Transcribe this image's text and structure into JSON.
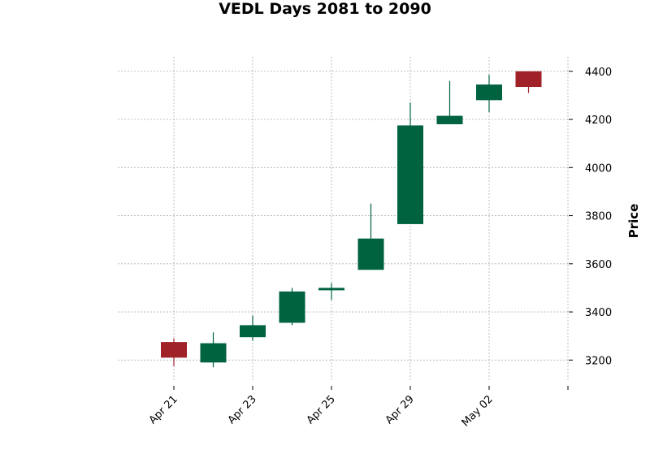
{
  "chart_data": {
    "type": "candlestick",
    "title": "VEDL Days 2081 to 2090",
    "ylabel": "Price",
    "xlabel": "",
    "ylim": [
      3110,
      4460
    ],
    "yticks": [
      3200,
      3400,
      3600,
      3800,
      4000,
      4200,
      4400
    ],
    "grid": true,
    "y_axis_side": "right",
    "colors": {
      "up": "#006340",
      "down": "#a02128"
    },
    "x_tick_labels": [
      "Apr 21",
      "Apr 23",
      "Apr 25",
      "Apr 29",
      "May 02",
      ""
    ],
    "x_tick_positions": [
      0,
      2,
      4,
      6,
      8,
      10
    ],
    "x_range": [
      -1.5,
      10.0
    ],
    "candles": [
      {
        "date": "Apr 21",
        "open": 3275,
        "high": 3290,
        "low": 3175,
        "close": 3210
      },
      {
        "date": "Apr 22",
        "open": 3190,
        "high": 3315,
        "low": 3170,
        "close": 3270
      },
      {
        "date": "Apr 23",
        "open": 3295,
        "high": 3385,
        "low": 3280,
        "close": 3345
      },
      {
        "date": "Apr 24",
        "open": 3355,
        "high": 3500,
        "low": 3345,
        "close": 3485
      },
      {
        "date": "Apr 25",
        "open": 3490,
        "high": 3520,
        "low": 3450,
        "close": 3500
      },
      {
        "date": "Apr 28",
        "open": 3575,
        "high": 3850,
        "low": 3575,
        "close": 3705
      },
      {
        "date": "Apr 29",
        "open": 3765,
        "high": 4270,
        "low": 3765,
        "close": 4175
      },
      {
        "date": "Apr 30",
        "open": 4180,
        "high": 4360,
        "low": 4180,
        "close": 4215
      },
      {
        "date": "May 02",
        "open": 4280,
        "high": 4385,
        "low": 4230,
        "close": 4345
      },
      {
        "date": "May 05",
        "open": 4400,
        "high": 4400,
        "low": 4310,
        "close": 4335
      }
    ]
  }
}
